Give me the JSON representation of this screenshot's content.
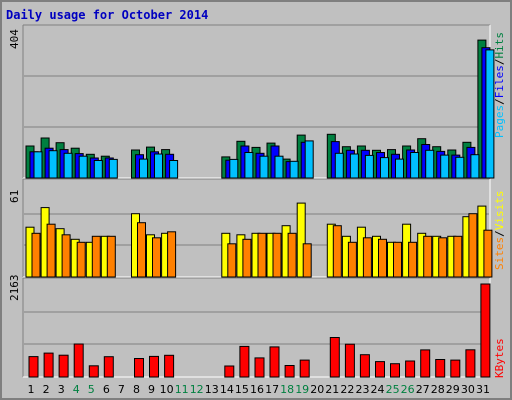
{
  "chart_data": {
    "type": "bar",
    "title": "Daily usage for October 2014",
    "x": [
      "1",
      "2",
      "3",
      "4",
      "5",
      "6",
      "7",
      "8",
      "9",
      "10",
      "11",
      "12",
      "13",
      "14",
      "15",
      "16",
      "17",
      "18",
      "19",
      "20",
      "21",
      "22",
      "23",
      "24",
      "25",
      "26",
      "27",
      "28",
      "29",
      "30",
      "31"
    ],
    "weekend_days": [
      "4",
      "5",
      "11",
      "12",
      "18",
      "19",
      "25",
      "26"
    ],
    "panels": [
      {
        "name": "hits-files-pages",
        "max_label": "404",
        "ymax": 404,
        "right_labels": [
          {
            "text": "Pages",
            "color": "#00c0ff"
          },
          {
            "text": "/",
            "color": "#000000"
          },
          {
            "text": "Files",
            "color": "#0000ff"
          },
          {
            "text": "/",
            "color": "#000000"
          },
          {
            "text": "Hits",
            "color": "#008040"
          }
        ],
        "series": [
          {
            "name": "Hits",
            "color": "#008040",
            "values": [
              88,
              110,
              97,
              82,
              65,
              60,
              0,
              77,
              85,
              78,
              0,
              0,
              0,
              58,
              101,
              84,
              96,
              52,
              118,
              0,
              120,
              86,
              88,
              76,
              78,
              88,
              108,
              86,
              77,
              98,
              379
            ]
          },
          {
            "name": "Files",
            "color": "#0000ff",
            "values": [
              72,
              82,
              78,
              67,
              55,
              55,
              0,
              64,
              72,
              65,
              0,
              0,
              0,
              49,
              88,
              68,
              88,
              45,
              98,
              0,
              100,
              76,
              76,
              70,
              65,
              77,
              92,
              73,
              63,
              84,
              358
            ]
          },
          {
            "name": "Pages",
            "color": "#00c0ff",
            "values": [
              72,
              75,
              68,
              60,
              48,
              51,
              0,
              52,
              66,
              48,
              0,
              0,
              0,
              51,
              70,
              60,
              60,
              46,
              102,
              0,
              68,
              66,
              62,
              56,
              52,
              70,
              76,
              63,
              57,
              64,
              352
            ]
          }
        ]
      },
      {
        "name": "visits-sites",
        "max_label": "61",
        "ymax": 61,
        "right_labels": [
          {
            "text": "Sites",
            "color": "#ff8000"
          },
          {
            "text": "/",
            "color": "#000000"
          },
          {
            "text": "Visits",
            "color": "#ffff00"
          }
        ],
        "series": [
          {
            "name": "Visits",
            "color": "#ffff00",
            "values": [
              33,
              46,
              32,
              25,
              23,
              27,
              0,
              42,
              28,
              29,
              0,
              0,
              0,
              29,
              28,
              29,
              29,
              34,
              49,
              0,
              35,
              27,
              33,
              27,
              23,
              35,
              29,
              27,
              27,
              40,
              47
            ]
          },
          {
            "name": "Sites",
            "color": "#ff8000",
            "values": [
              29,
              35,
              28,
              23,
              27,
              27,
              0,
              36,
              26,
              30,
              0,
              0,
              0,
              22,
              25,
              29,
              29,
              29,
              22,
              0,
              34,
              23,
              26,
              25,
              23,
              23,
              27,
              26,
              27,
              42,
              31
            ]
          }
        ]
      },
      {
        "name": "kbytes",
        "max_label": "2163",
        "ymax": 2163,
        "right_labels": [
          {
            "text": "KBytes",
            "color": "#ff0000"
          }
        ],
        "series": [
          {
            "name": "KBytes",
            "color": "#ff0000",
            "values": [
              474,
              555,
              508,
              768,
              260,
              472,
              0,
              430,
              480,
              504,
              0,
              0,
              0,
              256,
              711,
              445,
              700,
              268,
              394,
              0,
              918,
              763,
              518,
              358,
              309,
              371,
              630,
              406,
              392,
              632,
              2163
            ]
          }
        ]
      }
    ]
  }
}
